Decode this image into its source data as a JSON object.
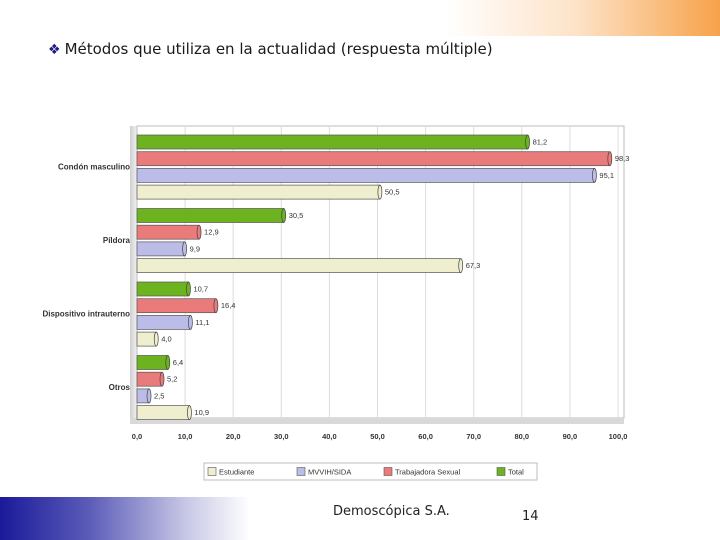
{
  "slide": {
    "title": "Métodos que utiliza en la actualidad (respuesta múltiple)",
    "bullet_icon": "diamond-bullet-icon",
    "company": "Demoscópica S.A.",
    "page_number": "14"
  },
  "colors": {
    "Estudiante": "#efefcf",
    "MVVIH/SIDA": "#bcbce8",
    "Trabajadora Sexual": "#ea7b7b",
    "Total": "#6db21f"
  },
  "chart_data": {
    "type": "bar",
    "orientation": "horizontal",
    "categories": [
      "Condón masculino",
      "Píldora",
      "Dispositivo intrauterno",
      "Otros"
    ],
    "series": [
      {
        "name": "Total",
        "values": [
          81.2,
          30.5,
          10.7,
          6.4
        ],
        "labels": [
          "81,2",
          "30,5",
          "10,7",
          "6,4"
        ]
      },
      {
        "name": "Trabajadora Sexual",
        "values": [
          98.3,
          12.9,
          16.4,
          5.2
        ],
        "labels": [
          "98,3",
          "12,9",
          "16,4",
          "5,2"
        ]
      },
      {
        "name": "MVVIH/SIDA",
        "values": [
          95.1,
          9.9,
          11.1,
          2.5
        ],
        "labels": [
          "95,1",
          "9,9",
          "11,1",
          "2,5"
        ]
      },
      {
        "name": "Estudiante",
        "values": [
          50.5,
          67.3,
          4.0,
          10.9
        ],
        "labels": [
          "50,5",
          "67,3",
          "4,0",
          "10,9"
        ]
      }
    ],
    "xlim": [
      0,
      100
    ],
    "ticks": [
      "0,0",
      "10,0",
      "20,0",
      "30,0",
      "40,0",
      "50,0",
      "60,0",
      "70,0",
      "80,0",
      "90,0",
      "100,0"
    ],
    "legend": [
      "Estudiante",
      "MVVIH/SIDA",
      "Trabajadora Sexual",
      "Total"
    ],
    "legend_position": "bottom",
    "grid": true
  }
}
